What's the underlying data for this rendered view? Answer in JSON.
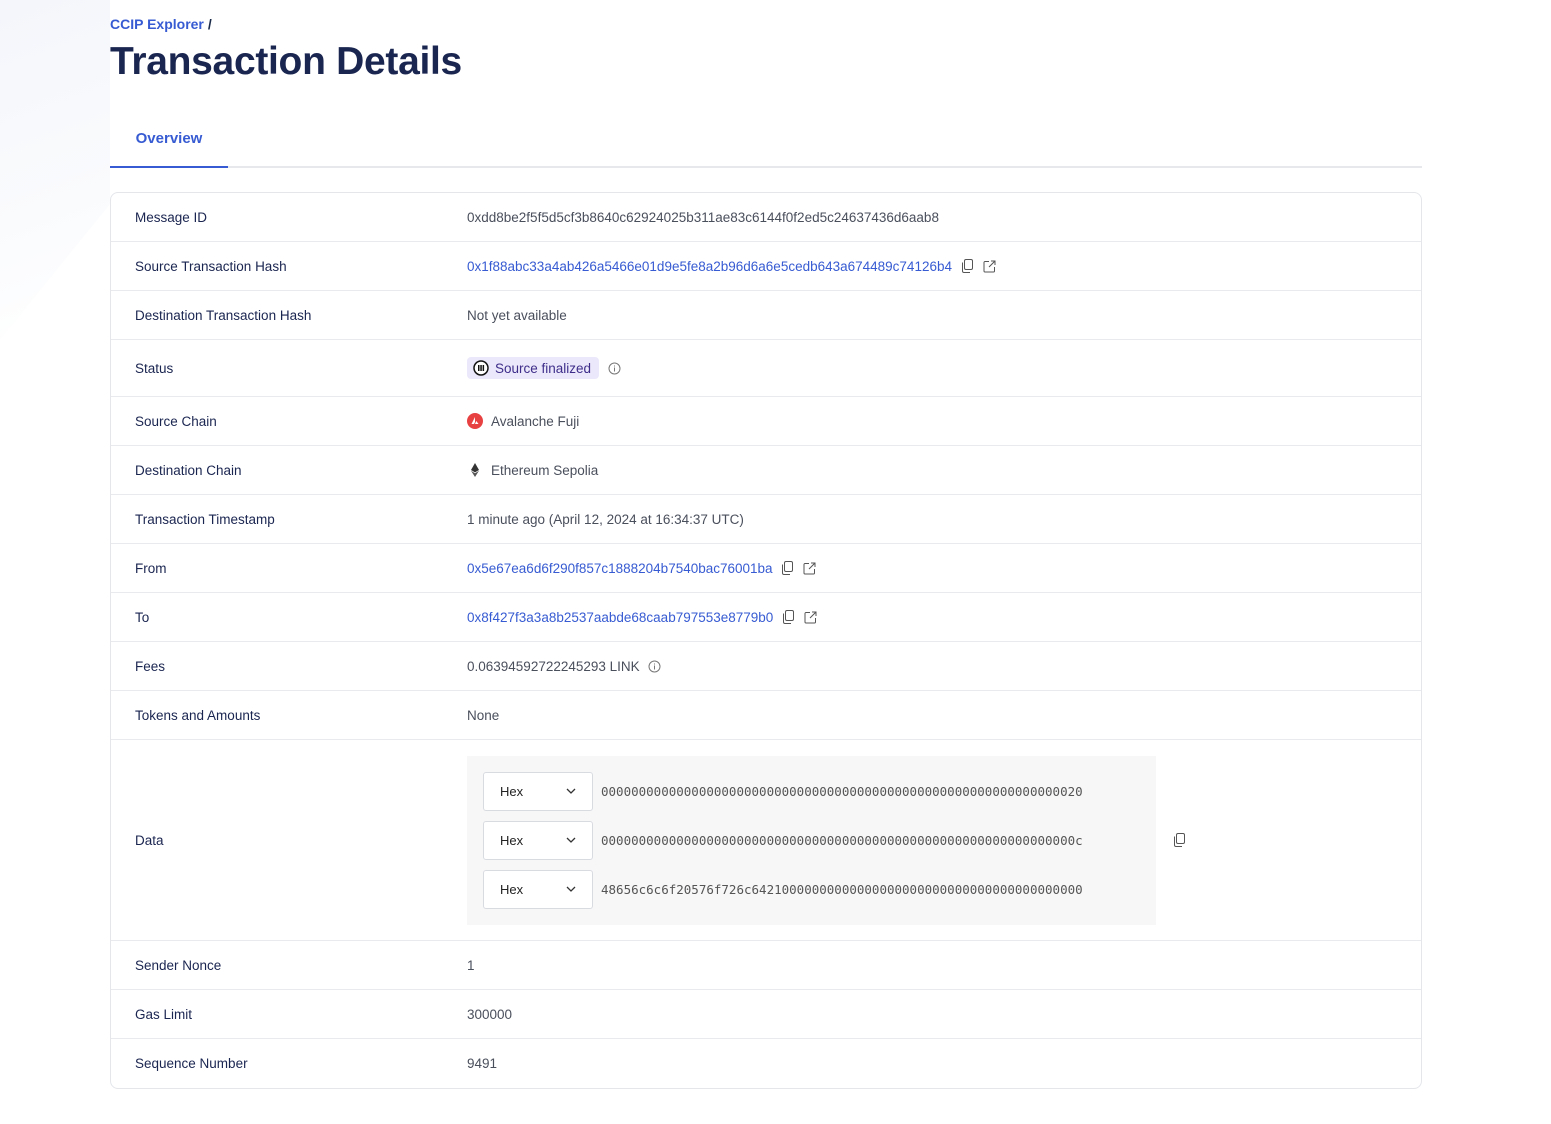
{
  "breadcrumb": {
    "root": "CCIP Explorer",
    "separator": "/"
  },
  "title": "Transaction Details",
  "tabs": [
    {
      "label": "Overview",
      "active": true
    }
  ],
  "rows": {
    "message_id": {
      "label": "Message ID",
      "value": "0xdd8be2f5f5d5cf3b8640c62924025b311ae83c6144f0f2ed5c24637436d6aab8"
    },
    "source_tx": {
      "label": "Source Transaction Hash",
      "value": "0x1f88abc33a4ab426a5466e01d9e5fe8a2b96d6a6e5cedb643a674489c74126b4"
    },
    "dest_tx": {
      "label": "Destination Transaction Hash",
      "value": "Not yet available"
    },
    "status": {
      "label": "Status",
      "value": "Source finalized"
    },
    "source_chain": {
      "label": "Source Chain",
      "value": "Avalanche Fuji"
    },
    "dest_chain": {
      "label": "Destination Chain",
      "value": "Ethereum Sepolia"
    },
    "timestamp": {
      "label": "Transaction Timestamp",
      "value": "1 minute ago (April 12, 2024 at 16:34:37 UTC)"
    },
    "from": {
      "label": "From",
      "value": "0x5e67ea6d6f290f857c1888204b7540bac76001ba"
    },
    "to": {
      "label": "To",
      "value": "0x8f427f3a3a8b2537aabde68caab797553e8779b0"
    },
    "fees": {
      "label": "Fees",
      "value": "0.06394592722245293 LINK"
    },
    "tokens": {
      "label": "Tokens and Amounts",
      "value": "None"
    },
    "data": {
      "label": "Data",
      "lines": [
        {
          "format": "Hex",
          "value": "0000000000000000000000000000000000000000000000000000000000000020"
        },
        {
          "format": "Hex",
          "value": "000000000000000000000000000000000000000000000000000000000000000c"
        },
        {
          "format": "Hex",
          "value": "48656c6c6f20576f726c64210000000000000000000000000000000000000000"
        }
      ]
    },
    "nonce": {
      "label": "Sender Nonce",
      "value": "1"
    },
    "gas": {
      "label": "Gas Limit",
      "value": "300000"
    },
    "sequence": {
      "label": "Sequence Number",
      "value": "9491"
    }
  },
  "colors": {
    "accent": "#375bd2",
    "title": "#1a2550",
    "badge_bg": "#ece8fb",
    "avalanche": "#e84142"
  }
}
